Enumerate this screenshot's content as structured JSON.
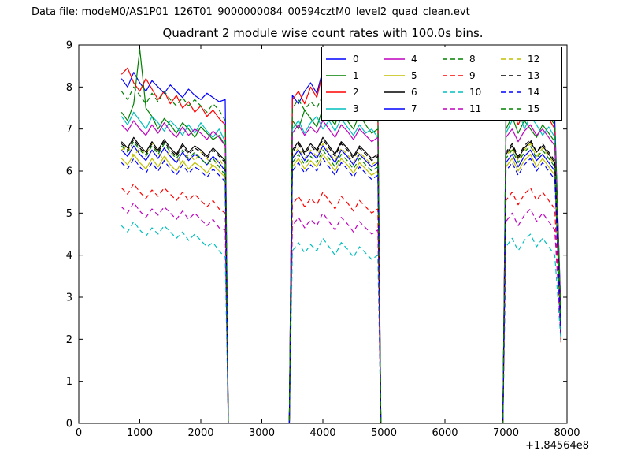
{
  "header": {
    "data_file_label": "Data file: modeM0/AS1P01_126T01_9000000084_00594cztM0_level2_quad_clean.evt"
  },
  "chart_data": {
    "type": "line",
    "title": "Quadrant 2 module wise count rates with 100.0s bins.",
    "xlabel": "",
    "ylabel": "",
    "xlim": [
      0,
      8000
    ],
    "ylim": [
      0,
      9
    ],
    "x_offset_label": "+1.84564e8",
    "xticks": [
      0,
      1000,
      2000,
      3000,
      4000,
      5000,
      6000,
      7000,
      8000
    ],
    "yticks": [
      0,
      1,
      2,
      3,
      4,
      5,
      6,
      7,
      8,
      9
    ],
    "grid": false,
    "legend_position": "upper right",
    "legend_columns": 4,
    "bin_seconds": 100.0,
    "x": [
      700,
      800,
      900,
      1000,
      1100,
      1200,
      1300,
      1400,
      1500,
      1600,
      1700,
      1800,
      1900,
      2000,
      2100,
      2200,
      2300,
      2400,
      2450,
      3450,
      3500,
      3600,
      3700,
      3800,
      3900,
      4000,
      4100,
      4200,
      4300,
      4400,
      4500,
      4600,
      4700,
      4800,
      4900,
      4950,
      6950,
      7000,
      7100,
      7200,
      7300,
      7400,
      7500,
      7600,
      7700,
      7800,
      7900
    ],
    "series": [
      {
        "name": "0",
        "color": "#0000ff",
        "linestyle": "solid",
        "values": [
          8.2,
          8.0,
          8.35,
          8.1,
          7.9,
          8.15,
          8.0,
          7.85,
          8.05,
          7.9,
          7.75,
          7.95,
          7.8,
          7.7,
          7.85,
          7.75,
          7.65,
          7.7,
          0,
          0,
          7.8,
          7.6,
          7.9,
          8.1,
          7.85,
          8.4,
          8.2,
          7.95,
          8.3,
          8.05,
          7.8,
          8.1,
          7.9,
          7.7,
          7.6,
          0,
          0,
          7.4,
          7.55,
          7.3,
          7.5,
          7.6,
          7.35,
          7.5,
          7.4,
          7.2,
          2.6
        ]
      },
      {
        "name": "1",
        "color": "#008000",
        "linestyle": "solid",
        "values": [
          7.4,
          7.2,
          7.6,
          8.9,
          7.5,
          7.3,
          7.0,
          7.25,
          7.1,
          6.9,
          7.15,
          7.0,
          6.8,
          7.05,
          6.9,
          6.75,
          6.85,
          6.6,
          0,
          0,
          7.2,
          7.0,
          7.45,
          7.25,
          7.05,
          7.5,
          7.3,
          7.1,
          7.55,
          7.2,
          7.0,
          7.35,
          7.1,
          6.9,
          7.0,
          0,
          0,
          7.0,
          7.3,
          6.9,
          7.2,
          7.0,
          6.8,
          7.1,
          6.9,
          6.7,
          2.4
        ]
      },
      {
        "name": "2",
        "color": "#ff0000",
        "linestyle": "solid",
        "values": [
          8.3,
          8.45,
          8.1,
          7.9,
          8.2,
          7.95,
          7.7,
          7.9,
          7.6,
          7.8,
          7.5,
          7.65,
          7.4,
          7.55,
          7.3,
          7.45,
          7.25,
          7.1,
          0,
          0,
          7.7,
          7.9,
          7.6,
          8.0,
          7.75,
          8.35,
          7.9,
          7.7,
          8.1,
          7.85,
          7.6,
          7.9,
          7.7,
          7.5,
          7.4,
          0,
          0,
          7.2,
          7.5,
          7.1,
          7.4,
          7.55,
          7.2,
          7.45,
          7.25,
          7.0,
          2.5
        ]
      },
      {
        "name": "3",
        "color": "#00bfbf",
        "linestyle": "solid",
        "values": [
          7.3,
          7.1,
          7.4,
          7.2,
          7.0,
          7.3,
          7.15,
          6.95,
          7.2,
          7.05,
          6.85,
          7.1,
          6.9,
          7.15,
          6.95,
          6.8,
          7.0,
          6.7,
          0,
          0,
          7.0,
          7.2,
          6.9,
          7.15,
          7.3,
          7.0,
          7.2,
          6.95,
          7.25,
          7.05,
          6.85,
          7.1,
          6.9,
          7.0,
          6.8,
          0,
          0,
          6.9,
          7.2,
          7.5,
          7.0,
          7.3,
          7.1,
          6.85,
          7.05,
          6.8,
          2.3
        ]
      },
      {
        "name": "4",
        "color": "#bf00bf",
        "linestyle": "solid",
        "values": [
          7.1,
          6.95,
          7.2,
          7.0,
          6.85,
          7.1,
          6.9,
          7.15,
          6.95,
          6.8,
          7.05,
          6.85,
          7.0,
          6.9,
          6.75,
          6.95,
          6.8,
          6.6,
          0,
          0,
          6.9,
          7.1,
          6.85,
          7.05,
          6.9,
          7.2,
          7.0,
          6.8,
          7.1,
          6.95,
          6.75,
          7.0,
          6.85,
          6.7,
          6.8,
          0,
          0,
          6.8,
          7.0,
          6.7,
          6.95,
          7.1,
          6.85,
          7.0,
          6.8,
          6.6,
          2.2
        ]
      },
      {
        "name": "5",
        "color": "#bfbf00",
        "linestyle": "solid",
        "values": [
          6.3,
          6.15,
          6.4,
          6.2,
          6.05,
          6.3,
          6.1,
          6.35,
          6.15,
          6.0,
          6.25,
          6.05,
          6.2,
          6.1,
          5.95,
          6.15,
          6.0,
          5.85,
          0,
          0,
          6.1,
          6.3,
          6.05,
          6.25,
          6.1,
          6.4,
          6.2,
          6.0,
          6.3,
          6.15,
          5.95,
          6.2,
          6.05,
          5.9,
          6.0,
          0,
          0,
          6.1,
          6.3,
          6.0,
          6.25,
          6.4,
          6.1,
          6.3,
          6.1,
          5.9,
          2.0
        ]
      },
      {
        "name": "6",
        "color": "#000000",
        "linestyle": "solid",
        "values": [
          6.7,
          6.55,
          6.8,
          6.6,
          6.45,
          6.7,
          6.5,
          6.75,
          6.55,
          6.4,
          6.65,
          6.45,
          6.6,
          6.5,
          6.35,
          6.55,
          6.4,
          6.25,
          0,
          0,
          6.5,
          6.7,
          6.45,
          6.65,
          6.5,
          6.8,
          6.6,
          6.4,
          6.7,
          6.55,
          6.35,
          6.6,
          6.45,
          6.3,
          6.4,
          0,
          0,
          6.4,
          6.6,
          6.3,
          6.55,
          6.7,
          6.45,
          6.6,
          6.4,
          6.2,
          2.1
        ]
      },
      {
        "name": "7",
        "color": "#0000ff",
        "linestyle": "solid",
        "values": [
          6.5,
          6.35,
          6.6,
          6.4,
          6.25,
          6.5,
          6.3,
          6.55,
          6.35,
          6.2,
          6.45,
          6.25,
          6.4,
          6.3,
          6.15,
          6.35,
          6.2,
          6.0,
          0,
          0,
          6.3,
          6.5,
          6.25,
          6.45,
          6.3,
          6.6,
          6.4,
          6.2,
          6.5,
          6.35,
          6.15,
          6.4,
          6.25,
          6.1,
          6.2,
          0,
          0,
          6.2,
          6.4,
          6.1,
          6.35,
          6.5,
          6.25,
          6.4,
          6.2,
          6.0,
          2.15
        ]
      },
      {
        "name": "8",
        "color": "#008000",
        "linestyle": "dashed",
        "values": [
          6.6,
          6.45,
          6.7,
          6.5,
          6.35,
          6.6,
          6.4,
          6.65,
          6.45,
          6.3,
          6.5,
          6.3,
          6.45,
          6.3,
          6.15,
          6.3,
          6.1,
          5.9,
          0,
          0,
          6.2,
          6.4,
          6.15,
          6.35,
          6.2,
          6.5,
          6.3,
          6.1,
          6.4,
          6.25,
          6.05,
          6.3,
          6.15,
          6.0,
          6.1,
          0,
          0,
          6.3,
          6.5,
          6.2,
          6.45,
          6.6,
          6.3,
          6.5,
          6.3,
          6.1,
          2.25
        ]
      },
      {
        "name": "9",
        "color": "#ff0000",
        "linestyle": "dashed",
        "values": [
          5.6,
          5.45,
          5.7,
          5.5,
          5.35,
          5.55,
          5.4,
          5.6,
          5.45,
          5.3,
          5.5,
          5.3,
          5.45,
          5.3,
          5.15,
          5.3,
          5.1,
          5.0,
          0,
          0,
          5.2,
          5.4,
          5.15,
          5.35,
          5.2,
          5.5,
          5.3,
          5.1,
          5.4,
          5.25,
          5.05,
          5.3,
          5.15,
          5.0,
          5.1,
          0,
          0,
          5.3,
          5.5,
          5.2,
          5.45,
          5.6,
          5.3,
          5.5,
          5.3,
          5.1,
          1.9
        ]
      },
      {
        "name": "10",
        "color": "#00bfbf",
        "linestyle": "dashed",
        "values": [
          4.7,
          4.55,
          4.8,
          4.6,
          4.45,
          4.65,
          4.5,
          4.7,
          4.55,
          4.4,
          4.55,
          4.35,
          4.5,
          4.35,
          4.2,
          4.3,
          4.1,
          3.95,
          0,
          0,
          4.1,
          4.3,
          4.05,
          4.25,
          4.1,
          4.4,
          4.2,
          4.0,
          4.3,
          4.15,
          3.95,
          4.2,
          4.05,
          3.9,
          4.0,
          0,
          0,
          4.2,
          4.4,
          4.1,
          4.35,
          4.5,
          4.2,
          4.4,
          4.2,
          4.0,
          1.95
        ]
      },
      {
        "name": "11",
        "color": "#bf00bf",
        "linestyle": "dashed",
        "values": [
          5.15,
          5.0,
          5.25,
          5.05,
          4.9,
          5.1,
          4.95,
          5.15,
          5.0,
          4.85,
          5.05,
          4.85,
          5.0,
          4.85,
          4.7,
          4.85,
          4.65,
          4.6,
          0,
          0,
          4.7,
          4.9,
          4.65,
          4.85,
          4.7,
          5.0,
          4.8,
          4.6,
          4.9,
          4.75,
          4.55,
          4.8,
          4.65,
          4.5,
          4.6,
          0,
          0,
          4.8,
          5.0,
          4.7,
          4.95,
          5.1,
          4.8,
          5.0,
          4.8,
          4.6,
          2.05
        ]
      },
      {
        "name": "12",
        "color": "#bfbf00",
        "linestyle": "dashed",
        "values": [
          6.5,
          6.6,
          6.35,
          6.55,
          6.4,
          6.65,
          6.45,
          6.25,
          6.5,
          6.35,
          6.15,
          6.4,
          6.25,
          6.45,
          6.3,
          6.1,
          6.3,
          6.05,
          0,
          0,
          6.35,
          6.55,
          6.3,
          6.5,
          6.35,
          6.65,
          6.45,
          6.25,
          6.55,
          6.4,
          6.2,
          6.45,
          6.3,
          6.15,
          6.25,
          0,
          0,
          6.35,
          6.55,
          6.25,
          6.5,
          6.65,
          6.35,
          6.55,
          6.35,
          6.15,
          2.3
        ]
      },
      {
        "name": "13",
        "color": "#000000",
        "linestyle": "dashed",
        "values": [
          6.65,
          6.5,
          6.75,
          6.55,
          6.4,
          6.65,
          6.45,
          6.7,
          6.5,
          6.35,
          6.6,
          6.4,
          6.55,
          6.45,
          6.3,
          6.5,
          6.35,
          6.2,
          0,
          0,
          6.45,
          6.65,
          6.4,
          6.6,
          6.45,
          6.75,
          6.55,
          6.35,
          6.65,
          6.5,
          6.3,
          6.55,
          6.4,
          6.25,
          6.35,
          0,
          0,
          6.45,
          6.65,
          6.35,
          6.6,
          6.75,
          6.45,
          6.65,
          6.45,
          6.25,
          2.35
        ]
      },
      {
        "name": "14",
        "color": "#0000ff",
        "linestyle": "dashed",
        "values": [
          6.2,
          6.05,
          6.3,
          6.1,
          5.95,
          6.2,
          6.0,
          6.25,
          6.05,
          5.9,
          6.15,
          5.95,
          6.1,
          6.0,
          5.85,
          6.05,
          5.9,
          5.75,
          0,
          0,
          6.0,
          6.2,
          5.95,
          6.15,
          6.0,
          6.3,
          6.1,
          5.9,
          6.2,
          6.05,
          5.85,
          6.1,
          5.95,
          5.8,
          5.9,
          0,
          0,
          6.0,
          6.2,
          5.9,
          6.15,
          6.3,
          6.0,
          6.2,
          6.0,
          5.8,
          2.1
        ]
      },
      {
        "name": "15",
        "color": "#008000",
        "linestyle": "dashed",
        "values": [
          7.9,
          7.7,
          8.0,
          7.8,
          7.6,
          7.85,
          7.65,
          7.9,
          7.7,
          7.55,
          7.75,
          7.55,
          7.7,
          7.55,
          7.4,
          7.6,
          7.45,
          7.2,
          0,
          0,
          7.5,
          7.7,
          7.45,
          7.65,
          7.5,
          7.8,
          7.6,
          7.4,
          7.7,
          7.55,
          7.35,
          7.6,
          7.45,
          7.3,
          7.4,
          0,
          0,
          7.3,
          7.5,
          7.2,
          7.45,
          7.6,
          7.3,
          7.5,
          7.3,
          7.1,
          2.45
        ]
      }
    ]
  }
}
